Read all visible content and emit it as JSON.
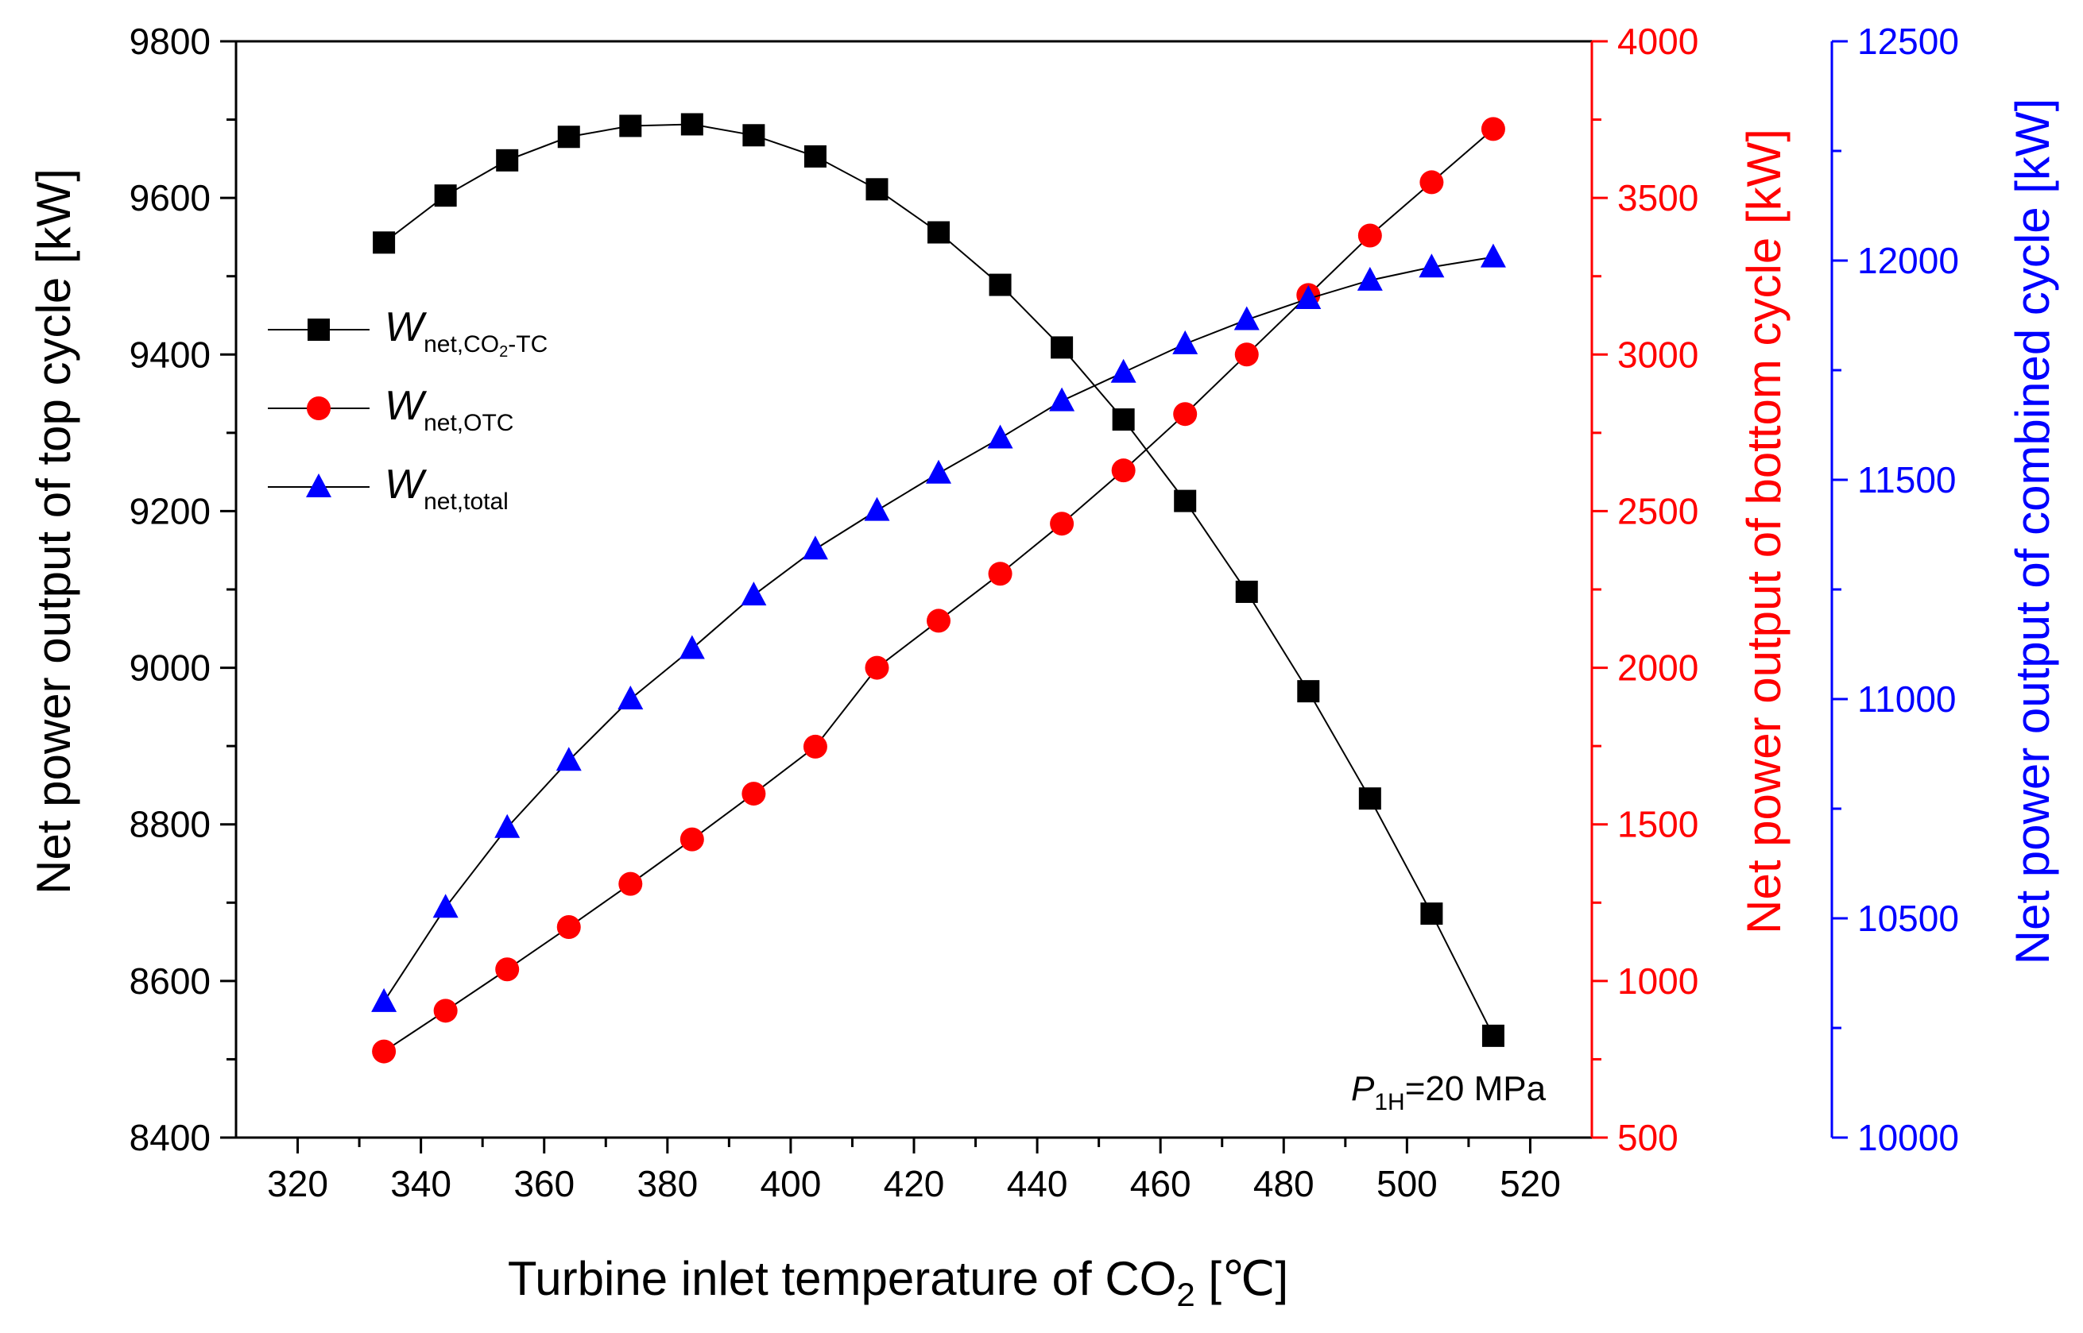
{
  "chart_data": {
    "type": "line",
    "title": "",
    "xlabel": "Turbine inlet temperature of CO",
    "xlabel_sub": "2",
    "xlabel_unit": " [℃]",
    "xlim": [
      310,
      530
    ],
    "xticks": [
      320,
      340,
      360,
      380,
      400,
      420,
      440,
      460,
      480,
      500,
      520
    ],
    "x": [
      334,
      344,
      354,
      364,
      374,
      384,
      394,
      404,
      414,
      424,
      434,
      444,
      454,
      464,
      474,
      484,
      494,
      504,
      514
    ],
    "axes": {
      "left": {
        "label": "Net power output of top cycle [kW]",
        "color": "#000000",
        "ylim": [
          8400,
          9800
        ],
        "ticks": [
          8400,
          8600,
          8800,
          9000,
          9200,
          9400,
          9600,
          9800
        ]
      },
      "right1": {
        "label": "Net power output of bottom cycle [kW]",
        "color": "#ff0000",
        "ylim": [
          500,
          4000
        ],
        "ticks": [
          500,
          1000,
          1500,
          2000,
          2500,
          3000,
          3500,
          4000
        ]
      },
      "right2": {
        "label": "Net power output of combined cycle [kW]",
        "color": "#0000ff",
        "ylim": [
          10000,
          12500
        ],
        "ticks": [
          10000,
          10500,
          11000,
          11500,
          12000,
          12500
        ]
      }
    },
    "series": [
      {
        "name": "W_net,CO2-TC",
        "symbol": "W",
        "subscript": "net,CO",
        "subscript2": "2",
        "subscript3": "-TC",
        "axis": "left",
        "marker": "square",
        "color": "#000000",
        "values": [
          9543,
          9603,
          9648,
          9678,
          9692,
          9694,
          9680,
          9653,
          9611,
          9556,
          9489,
          9409,
          9317,
          9213,
          9097,
          8970,
          8833,
          8686,
          8530
        ]
      },
      {
        "name": "W_net,OTC",
        "symbol": "W",
        "subscript": "net,OTC",
        "axis": "right1",
        "marker": "circle",
        "color": "#ff0000",
        "values": [
          775,
          905,
          1037,
          1172,
          1310,
          1452,
          1598,
          1748,
          2000,
          2150,
          2300,
          2460,
          2630,
          2810,
          3000,
          3190,
          3380,
          3550,
          3720
        ]
      },
      {
        "name": "W_net,total",
        "symbol": "W",
        "subscript": "net,total",
        "axis": "right2",
        "marker": "triangle",
        "color": "#0000ff",
        "values": [
          10310,
          10525,
          10707,
          10860,
          11000,
          11115,
          11237,
          11342,
          11430,
          11515,
          11595,
          11680,
          11745,
          11810,
          11865,
          11913,
          11955,
          11985,
          12008
        ]
      }
    ],
    "annotation": {
      "symbol": "P",
      "subscript": "1H",
      "text": "=20 MPa"
    },
    "legend_position": "upper-left"
  }
}
